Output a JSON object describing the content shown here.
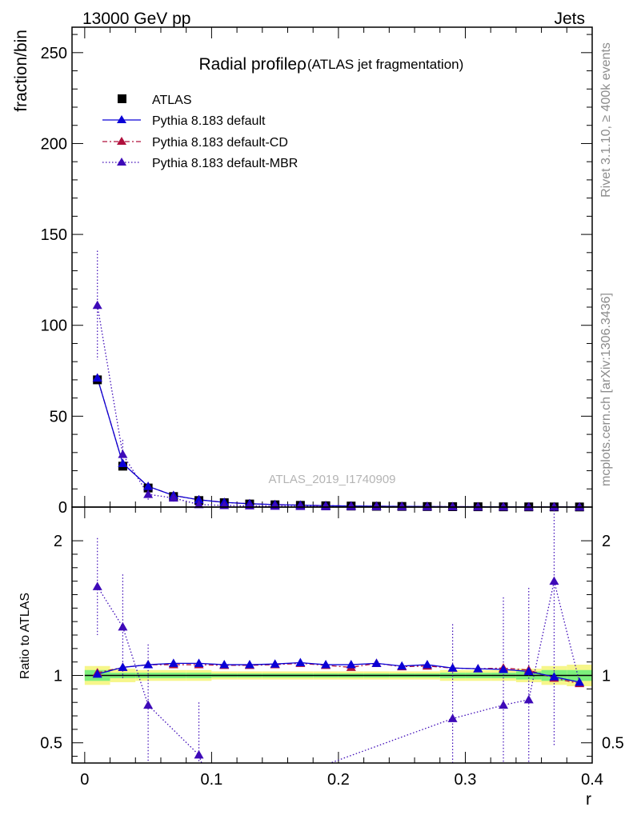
{
  "header": {
    "left": "13000 GeV pp",
    "right": "Jets"
  },
  "side_text": {
    "top": "Rivet 3.1.10, ≥ 400k events",
    "bottom": "mcplots.cern.ch [arXiv:1306.3436]"
  },
  "watermark": "ATLAS_2019_I1740909",
  "colors": {
    "data": "#000000",
    "default": "#0a00d6",
    "cd": "#b0103c",
    "mbr": "#3e0ab8",
    "band_green": "#7cf07c",
    "band_yellow": "#f6f68a"
  },
  "chart_data": [
    {
      "type": "scatter",
      "title": "Radial profileρ",
      "subtitle": "(ATLAS jet fragmentation)",
      "ylabel": "fraction/bin",
      "ylim": [
        0,
        264
      ],
      "yticks": [
        0,
        50,
        100,
        150,
        200,
        250
      ],
      "x": [
        0.01,
        0.03,
        0.05,
        0.07,
        0.09,
        0.11,
        0.13,
        0.15,
        0.17,
        0.19,
        0.21,
        0.23,
        0.25,
        0.27,
        0.29,
        0.31,
        0.33,
        0.35,
        0.37,
        0.39
      ],
      "legend": [
        "ATLAS",
        "Pythia 8.183 default",
        "Pythia 8.183 default-CD",
        "Pythia 8.183 default-MBR"
      ],
      "series": [
        {
          "name": "ATLAS",
          "values": [
            70,
            22.5,
            10.5,
            5.8,
            3.6,
            2.4,
            1.7,
            1.25,
            0.95,
            0.72,
            0.56,
            0.44,
            0.35,
            0.28,
            0.22,
            0.18,
            0.14,
            0.11,
            0.09,
            0.07
          ]
        },
        {
          "name": "Pythia 8.183 default",
          "values": [
            71,
            24,
            11.4,
            6.4,
            4.0,
            2.6,
            1.85,
            1.36,
            1.05,
            0.78,
            0.61,
            0.49,
            0.38,
            0.31,
            0.23,
            0.19,
            0.15,
            0.115,
            0.09,
            0.066
          ]
        },
        {
          "name": "Pythia 8.183 default-CD",
          "values": [
            71,
            24,
            11.4,
            6.4,
            4.0,
            2.6,
            1.85,
            1.36,
            1.05,
            0.78,
            0.6,
            0.49,
            0.38,
            0.31,
            0.23,
            0.19,
            0.15,
            0.115,
            0.09,
            0.066
          ]
        },
        {
          "name": "Pythia 8.183 default-MBR",
          "values": [
            111,
            29,
            7,
            5,
            1.4,
            0.9,
            0.7,
            0.5,
            0.4,
            0.3,
            0.25,
            0.2,
            0.16,
            0.13,
            0.15,
            0.13,
            0.11,
            0.09,
            0.15,
            0.066
          ],
          "errors": [
            30,
            8,
            3,
            2,
            1,
            0.8,
            0.6,
            0.5,
            0.4,
            0.35,
            0.3,
            0.25,
            0.2,
            0.15,
            0.15,
            0.12,
            0.1,
            0.08,
            0.1,
            0.05
          ]
        }
      ]
    },
    {
      "type": "scatter",
      "xlabel": "r",
      "ylabel": "Ratio to ATLAS",
      "xlim": [
        -0.01,
        0.4
      ],
      "xticks": [
        0,
        0.1,
        0.2,
        0.3,
        0.4
      ],
      "ylim": [
        0.35,
        2.25
      ],
      "yticks": [
        0.5,
        1,
        2
      ],
      "ytick_labels": [
        "0.5",
        "1",
        "2"
      ],
      "x": [
        0.01,
        0.03,
        0.05,
        0.07,
        0.09,
        0.11,
        0.13,
        0.15,
        0.17,
        0.19,
        0.21,
        0.23,
        0.25,
        0.27,
        0.29,
        0.31,
        0.33,
        0.35,
        0.37,
        0.39
      ],
      "bands": {
        "green": [
          0.04,
          0.02,
          0.02,
          0.02,
          0.02,
          0.015,
          0.015,
          0.015,
          0.015,
          0.015,
          0.015,
          0.015,
          0.015,
          0.015,
          0.02,
          0.02,
          0.02,
          0.03,
          0.04,
          0.04
        ],
        "yellow": [
          0.07,
          0.05,
          0.04,
          0.04,
          0.04,
          0.03,
          0.03,
          0.03,
          0.03,
          0.03,
          0.03,
          0.03,
          0.03,
          0.03,
          0.04,
          0.04,
          0.04,
          0.05,
          0.07,
          0.08
        ]
      },
      "series": [
        {
          "name": "Pythia 8.183 default",
          "values": [
            1.01,
            1.06,
            1.08,
            1.09,
            1.09,
            1.08,
            1.08,
            1.085,
            1.095,
            1.08,
            1.08,
            1.09,
            1.07,
            1.08,
            1.055,
            1.05,
            1.045,
            1.03,
            0.99,
            0.95
          ]
        },
        {
          "name": "Pythia 8.183 default-CD",
          "values": [
            1.02,
            1.06,
            1.08,
            1.08,
            1.08,
            1.075,
            1.075,
            1.08,
            1.09,
            1.075,
            1.06,
            1.09,
            1.065,
            1.07,
            1.055,
            1.05,
            1.055,
            1.04,
            0.98,
            0.94
          ]
        },
        {
          "name": "Pythia 8.183 default-MBR",
          "values": [
            1.66,
            1.36,
            0.78,
            null,
            0.41,
            null,
            null,
            null,
            null,
            null,
            null,
            null,
            null,
            null,
            0.68,
            null,
            0.78,
            0.82,
            1.7,
            null
          ],
          "errors": [
            0.36,
            0.39,
            0.45,
            null,
            0.39,
            null,
            null,
            null,
            null,
            null,
            null,
            null,
            null,
            null,
            0.7,
            null,
            0.8,
            0.83,
            1.23,
            null
          ]
        }
      ]
    }
  ]
}
